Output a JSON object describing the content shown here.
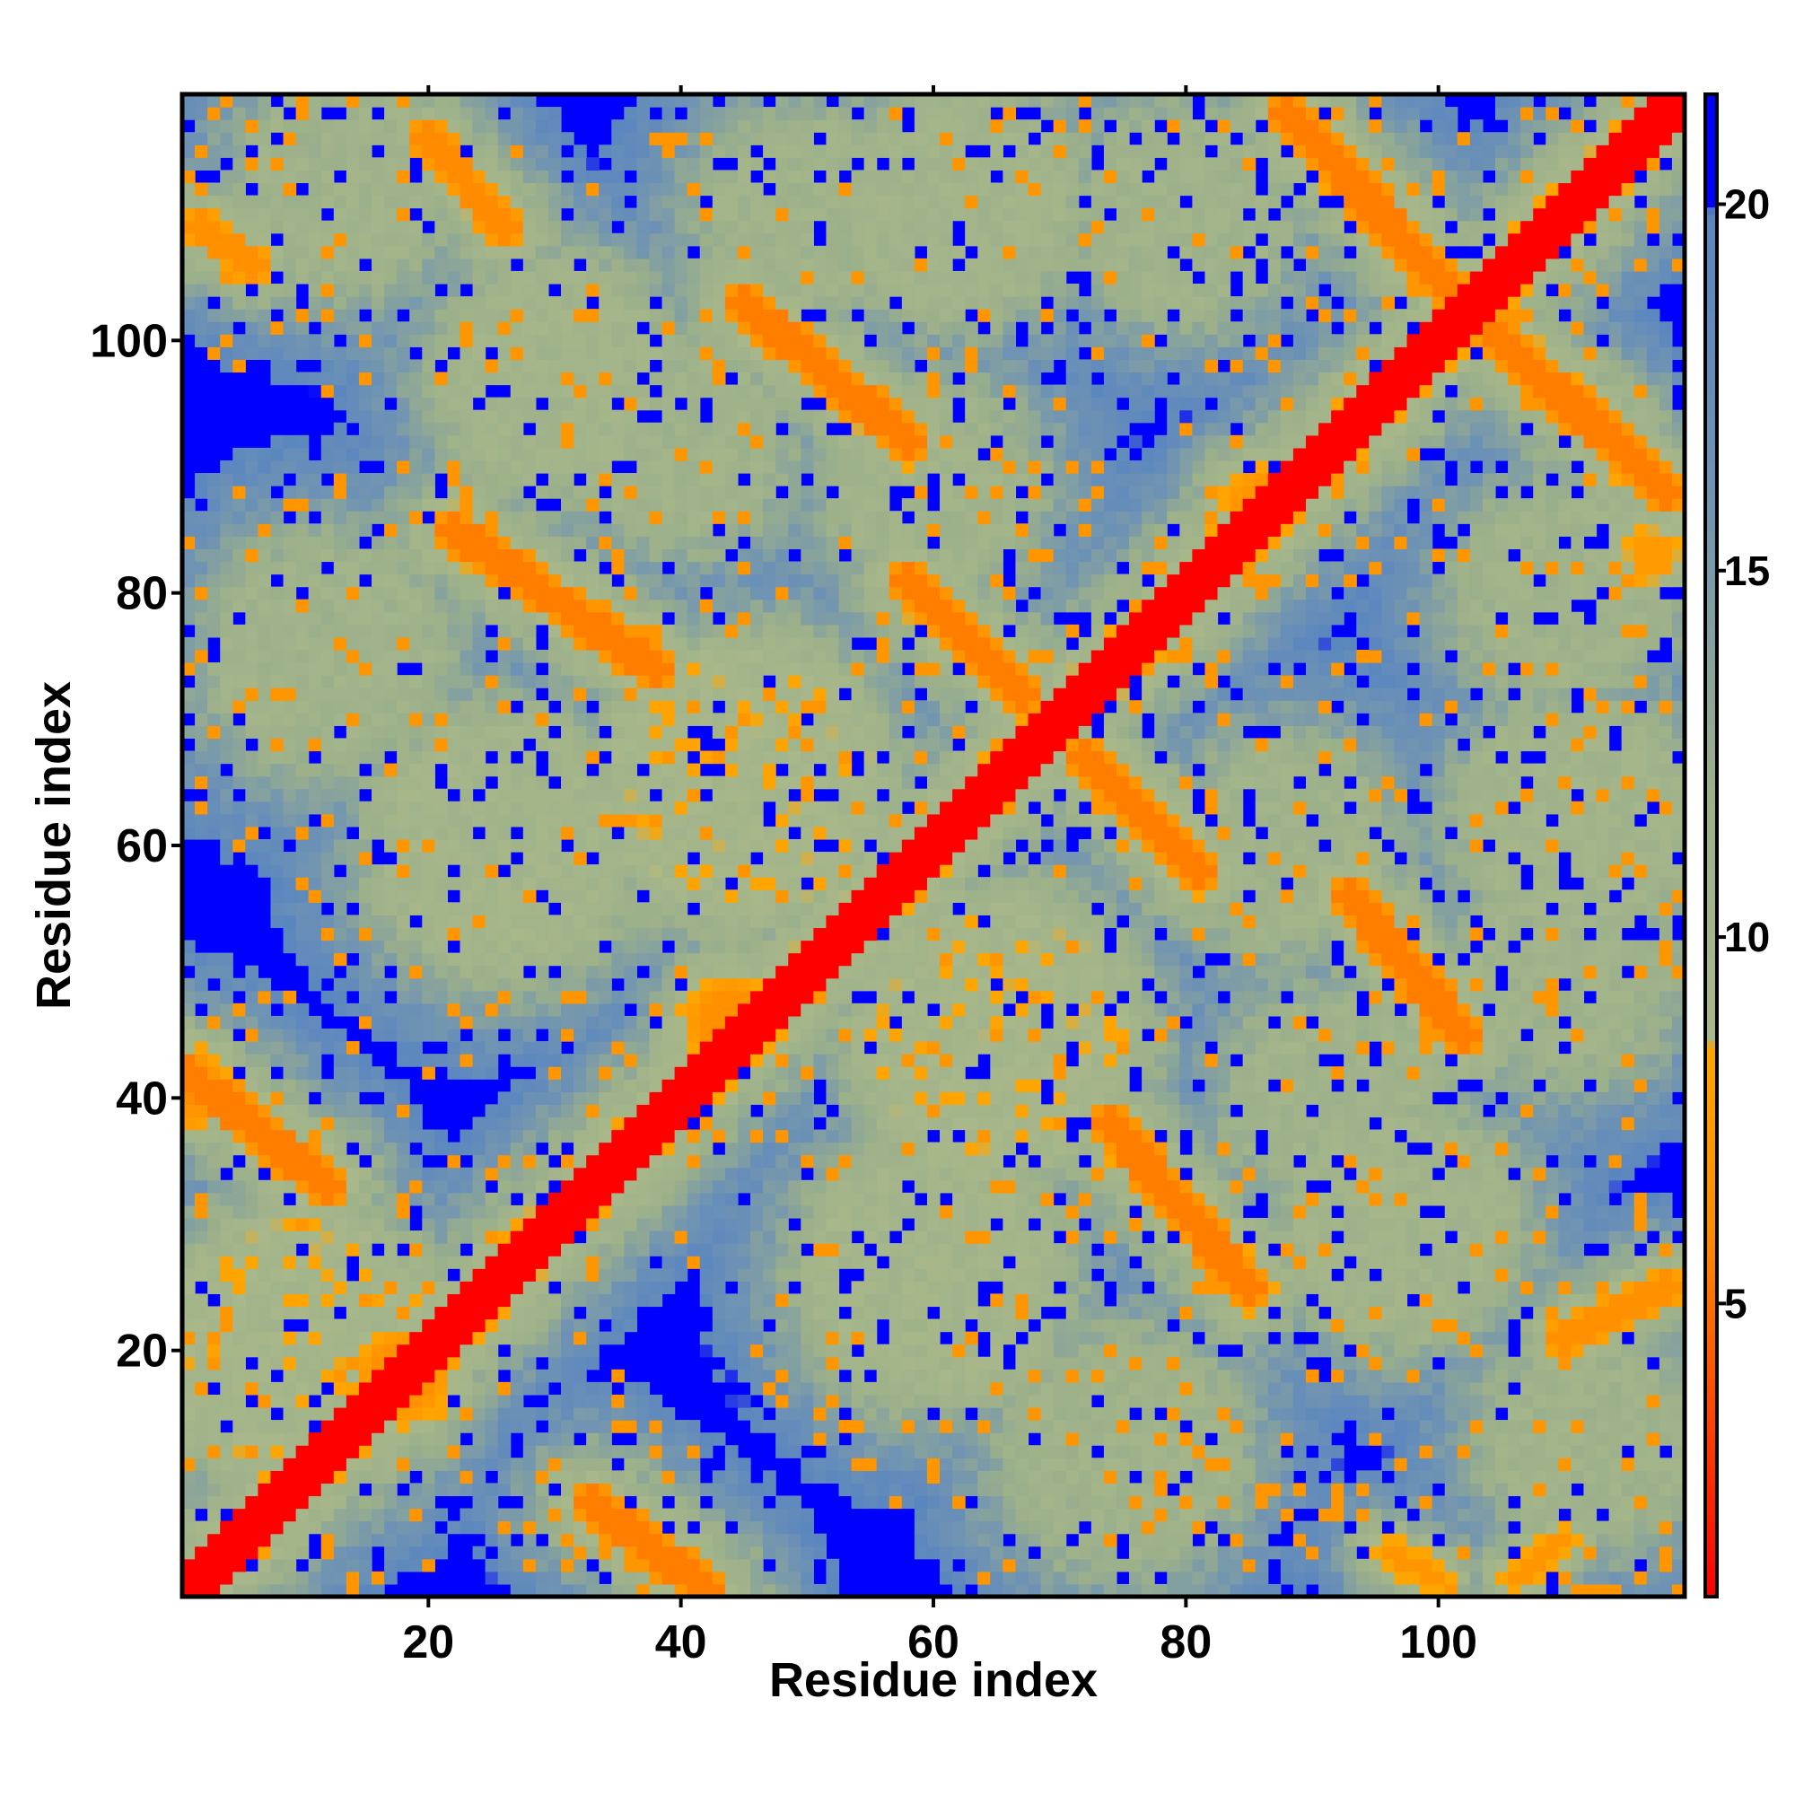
{
  "chart_data": {
    "type": "heatmap",
    "title": "",
    "xlabel": "Residue index",
    "ylabel": "Residue index",
    "n_residues": 119,
    "xlim": [
      1,
      119
    ],
    "ylim": [
      1,
      119
    ],
    "x_ticks": [
      20,
      40,
      60,
      80,
      100
    ],
    "y_ticks": [
      20,
      40,
      60,
      80,
      100
    ],
    "colorbar": {
      "min": 1,
      "max": 21.5,
      "ticks": [
        5,
        10,
        15,
        20
      ],
      "stops": [
        {
          "value": 1.0,
          "color": "#ff0000"
        },
        {
          "value": 3.5,
          "color": "#ff4500"
        },
        {
          "value": 6.0,
          "color": "#ff8c00"
        },
        {
          "value": 8.5,
          "color": "#ffa500"
        },
        {
          "value": 8.6,
          "color": "#a9b88a"
        },
        {
          "value": 12.0,
          "color": "#9cb08a"
        },
        {
          "value": 16.0,
          "color": "#6f93b3"
        },
        {
          "value": 19.9,
          "color": "#5a86c0"
        },
        {
          "value": 20.0,
          "color": "#0000ff"
        },
        {
          "value": 21.5,
          "color": "#0000ff"
        }
      ]
    },
    "cutoff_value": 21.5,
    "band_scale": 20,
    "band_orange_halfwidth": 1.0,
    "main_diagonal": {
      "from": 1,
      "to": 119,
      "value": 1.0,
      "halfwidth": 1.6
    },
    "contact_segments": [
      {
        "i1": 1,
        "j1": 42,
        "i2": 12,
        "j2": 33,
        "value": 5.5,
        "halfwidth": 1.2,
        "spread": 9
      },
      {
        "i1": 33,
        "j1": 8,
        "i2": 42,
        "j2": 1,
        "value": 5.5,
        "halfwidth": 1.2,
        "spread": 9
      },
      {
        "i1": 22,
        "j1": 85,
        "i2": 38,
        "j2": 74,
        "value": 5.5,
        "halfwidth": 1.2,
        "spread": 9
      },
      {
        "i1": 45,
        "j1": 103,
        "i2": 58,
        "j2": 92,
        "value": 5.5,
        "halfwidth": 1.2,
        "spread": 9
      },
      {
        "i1": 58,
        "j1": 81,
        "i2": 67,
        "j2": 72,
        "value": 5.5,
        "halfwidth": 1.2,
        "spread": 9
      },
      {
        "i1": 72,
        "j1": 67,
        "i2": 81,
        "j2": 58,
        "value": 5.5,
        "halfwidth": 1.2,
        "spread": 9
      },
      {
        "i1": 74,
        "j1": 38,
        "i2": 85,
        "j2": 25,
        "value": 5.5,
        "halfwidth": 1.2,
        "spread": 9
      },
      {
        "i1": 93,
        "j1": 56,
        "i2": 102,
        "j2": 45,
        "value": 5.5,
        "halfwidth": 1.2,
        "spread": 9
      },
      {
        "i1": 88,
        "j1": 118,
        "i2": 101,
        "j2": 104,
        "value": 5.5,
        "halfwidth": 1.2,
        "spread": 9
      },
      {
        "i1": 104,
        "j1": 101,
        "i2": 118,
        "j2": 88,
        "value": 5.5,
        "halfwidth": 1.2,
        "spread": 9
      },
      {
        "i1": 20,
        "j1": 116,
        "i2": 26,
        "j2": 109,
        "value": 6.0,
        "halfwidth": 1.0,
        "spread": 8
      },
      {
        "i1": 2,
        "j1": 109,
        "i2": 6,
        "j2": 106,
        "value": 6.5,
        "halfwidth": 1.0,
        "spread": 7
      },
      {
        "i1": 110,
        "j1": 21,
        "i2": 118,
        "j2": 25,
        "value": 6.5,
        "halfwidth": 1.0,
        "spread": 7
      },
      {
        "i1": 96,
        "j1": 4,
        "i2": 100,
        "j2": 2,
        "value": 7.0,
        "halfwidth": 0.8,
        "spread": 6
      },
      {
        "i1": 106,
        "j1": 2,
        "i2": 110,
        "j2": 5,
        "value": 7.0,
        "halfwidth": 0.8,
        "spread": 6
      }
    ],
    "contact_blobs": [
      {
        "i": 18,
        "j": 18,
        "value": 6.5,
        "radius": 2.5,
        "spread": 8
      },
      {
        "i": 44,
        "j": 46,
        "value": 6.5,
        "radius": 2.5,
        "spread": 8
      },
      {
        "i": 86,
        "j": 87,
        "value": 7.0,
        "radius": 2.0,
        "spread": 8
      },
      {
        "i": 117,
        "j": 83,
        "value": 7.5,
        "radius": 1.5,
        "spread": 6
      },
      {
        "i": 1,
        "j": 41,
        "value": 6.0,
        "radius": 1.5,
        "spread": 8
      },
      {
        "i": 10,
        "j": 20,
        "value": 9.5,
        "radius": 10.0,
        "spread": 10
      },
      {
        "i": 45,
        "j": 65,
        "value": 9.5,
        "radius": 10.0,
        "spread": 10
      },
      {
        "i": 65,
        "j": 45,
        "value": 9.5,
        "radius": 10.0,
        "spread": 10
      },
      {
        "i": 62,
        "j": 111,
        "value": 10.5,
        "radius": 8.0,
        "spread": 10
      },
      {
        "i": 111,
        "j": 62,
        "value": 10.5,
        "radius": 8.0,
        "spread": 10
      },
      {
        "i": 26,
        "j": 60,
        "value": 10.0,
        "radius": 9.0,
        "spread": 10
      },
      {
        "i": 60,
        "j": 26,
        "value": 10.0,
        "radius": 9.0,
        "spread": 10
      },
      {
        "i": 97,
        "j": 30,
        "value": 10.5,
        "radius": 8.0,
        "spread": 10
      },
      {
        "i": 30,
        "j": 97,
        "value": 10.5,
        "radius": 8.0,
        "spread": 10
      },
      {
        "i": 12,
        "j": 75,
        "value": 11.0,
        "radius": 8.0,
        "spread": 10
      },
      {
        "i": 75,
        "j": 12,
        "value": 11.0,
        "radius": 8.0,
        "spread": 10
      },
      {
        "i": 80,
        "j": 110,
        "value": 11.0,
        "radius": 7.0,
        "spread": 10
      },
      {
        "i": 110,
        "j": 80,
        "value": 11.0,
        "radius": 7.0,
        "spread": 10
      },
      {
        "i": 110,
        "j": 50,
        "value": 11.0,
        "radius": 7.0,
        "spread": 10
      },
      {
        "i": 50,
        "j": 110,
        "value": 11.0,
        "radius": 7.0,
        "spread": 10
      },
      {
        "i": 112,
        "j": 13,
        "value": 11.0,
        "radius": 7.0,
        "spread": 10
      },
      {
        "i": 13,
        "j": 112,
        "value": 11.0,
        "radius": 7.0,
        "spread": 10
      },
      {
        "i": 88,
        "j": 60,
        "value": 11.0,
        "radius": 7.0,
        "spread": 10
      },
      {
        "i": 60,
        "j": 88,
        "value": 11.0,
        "radius": 7.0,
        "spread": 10
      },
      {
        "i": 40,
        "j": 92,
        "value": 11.0,
        "radius": 7.0,
        "spread": 10
      },
      {
        "i": 92,
        "j": 40,
        "value": 11.0,
        "radius": 7.0,
        "spread": 10
      }
    ]
  }
}
